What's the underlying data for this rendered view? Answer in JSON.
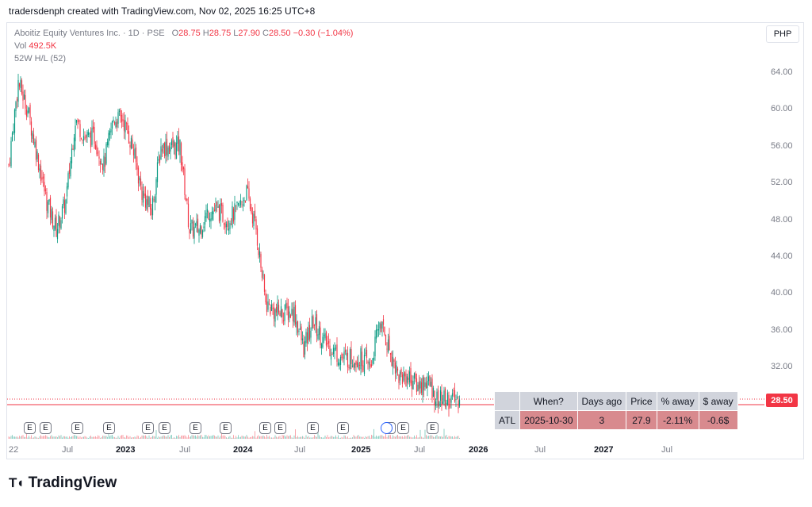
{
  "header": {
    "attribution": "tradersdenph created with TradingView.com, Nov 02, 2025 16:25 UTC+8"
  },
  "legend": {
    "symbol": "Aboitiz Equity Ventures Inc. · 1D · PSE",
    "o_label": "O",
    "o_value": "28.75",
    "h_label": "H",
    "h_value": "28.75",
    "l_label": "L",
    "l_value": "27.90",
    "c_label": "C",
    "c_value": "28.50",
    "change": "−0.30 (−1.04%)",
    "vol_label": "Vol",
    "vol_value": "492.5K",
    "indicator": "52W H/L (52)"
  },
  "currency": "PHP",
  "price_tag": "28.50",
  "y_axis": [
    "64.00",
    "60.00",
    "56.00",
    "52.00",
    "48.00",
    "44.00",
    "40.00",
    "36.00",
    "32.00"
  ],
  "x_axis": [
    {
      "label": "22",
      "bold": false
    },
    {
      "label": "Jul",
      "bold": false
    },
    {
      "label": "2023",
      "bold": true
    },
    {
      "label": "Jul",
      "bold": false
    },
    {
      "label": "2024",
      "bold": true
    },
    {
      "label": "Jul",
      "bold": false
    },
    {
      "label": "2025",
      "bold": true
    },
    {
      "label": "Jul",
      "bold": false
    },
    {
      "label": "2026",
      "bold": true
    },
    {
      "label": "Jul",
      "bold": false
    },
    {
      "label": "2027",
      "bold": true
    },
    {
      "label": "Jul",
      "bold": false
    }
  ],
  "earnings_label": "E",
  "atl_table": {
    "headers": [
      "When?",
      "Days ago",
      "Price",
      "% away",
      "$ away"
    ],
    "row_label": "ATL",
    "row": [
      "2025-10-30",
      "3",
      "27.9",
      "-2.11%",
      "-0.6$"
    ]
  },
  "brand": "TradingView",
  "colors": {
    "up": "#089981",
    "down": "#f23645",
    "axis_text": "#787b86",
    "grid": "#e0e3eb",
    "atl_cell": "#d88a8e",
    "header_cell": "#d1d4dc"
  },
  "chart_data": {
    "type": "candlestick",
    "symbol": "Aboitiz Equity Ventures Inc.",
    "interval": "1D",
    "exchange": "PSE",
    "ylim": [
      28,
      66
    ],
    "last_close": 28.5,
    "all_time_low": 27.9,
    "path": [
      {
        "t": "2022-01",
        "v": 54
      },
      {
        "t": "2022-02",
        "v": 63
      },
      {
        "t": "2022-03",
        "v": 60
      },
      {
        "t": "2022-04",
        "v": 55
      },
      {
        "t": "2022-05",
        "v": 50
      },
      {
        "t": "2022-06",
        "v": 47
      },
      {
        "t": "2022-07",
        "v": 50
      },
      {
        "t": "2022-08",
        "v": 59
      },
      {
        "t": "2022-09",
        "v": 57
      },
      {
        "t": "2022-10",
        "v": 57
      },
      {
        "t": "2022-11",
        "v": 54
      },
      {
        "t": "2022-12",
        "v": 59
      },
      {
        "t": "2023-01",
        "v": 59
      },
      {
        "t": "2023-02",
        "v": 56
      },
      {
        "t": "2023-03",
        "v": 51
      },
      {
        "t": "2023-04",
        "v": 49
      },
      {
        "t": "2023-05",
        "v": 56
      },
      {
        "t": "2023-06",
        "v": 56
      },
      {
        "t": "2023-07",
        "v": 56
      },
      {
        "t": "2023-08",
        "v": 47
      },
      {
        "t": "2023-09",
        "v": 47
      },
      {
        "t": "2023-10",
        "v": 49
      },
      {
        "t": "2023-11",
        "v": 49
      },
      {
        "t": "2023-12",
        "v": 48
      },
      {
        "t": "2024-01",
        "v": 49
      },
      {
        "t": "2024-02",
        "v": 51
      },
      {
        "t": "2024-03",
        "v": 47
      },
      {
        "t": "2024-04",
        "v": 39
      },
      {
        "t": "2024-05",
        "v": 38
      },
      {
        "t": "2024-06",
        "v": 38
      },
      {
        "t": "2024-07",
        "v": 38
      },
      {
        "t": "2024-08",
        "v": 34
      },
      {
        "t": "2024-09",
        "v": 37
      },
      {
        "t": "2024-10",
        "v": 35
      },
      {
        "t": "2024-11",
        "v": 34
      },
      {
        "t": "2024-12",
        "v": 33
      },
      {
        "t": "2025-01",
        "v": 33
      },
      {
        "t": "2025-02",
        "v": 33
      },
      {
        "t": "2025-03",
        "v": 32
      },
      {
        "t": "2025-04",
        "v": 37
      },
      {
        "t": "2025-05",
        "v": 34
      },
      {
        "t": "2025-06",
        "v": 31
      },
      {
        "t": "2025-07",
        "v": 31
      },
      {
        "t": "2025-08",
        "v": 30
      },
      {
        "t": "2025-09",
        "v": 30.5
      },
      {
        "t": "2025-10",
        "v": 28.5
      }
    ],
    "earnings_dates": [
      "2022-03",
      "2022-04",
      "2022-08",
      "2022-11",
      "2023-03",
      "2023-04",
      "2023-08",
      "2023-11",
      "2024-03",
      "2024-04",
      "2024-08",
      "2024-11",
      "2025-03",
      "2025-04",
      "2025-08"
    ]
  }
}
